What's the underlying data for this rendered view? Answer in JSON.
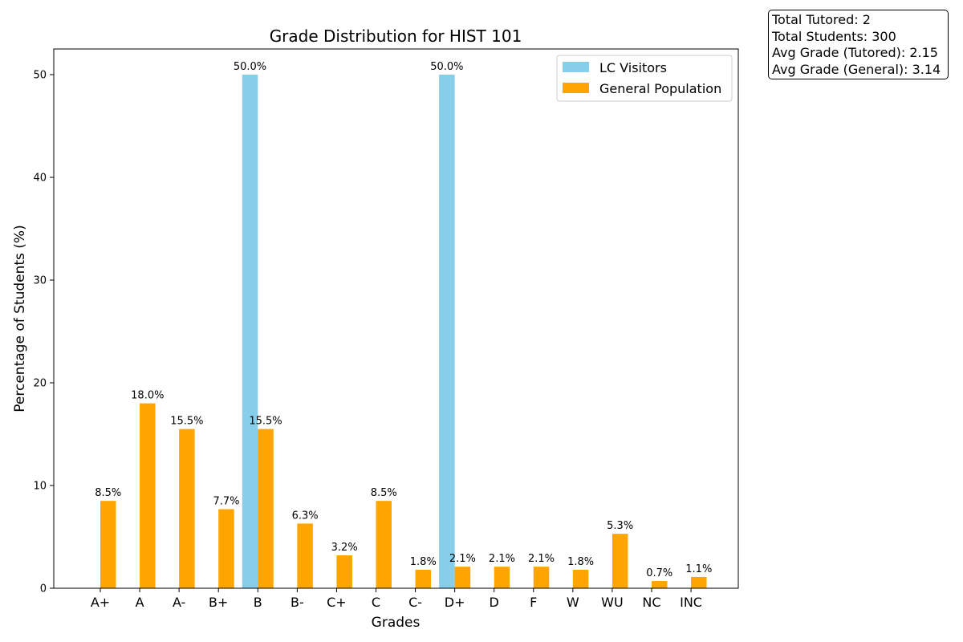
{
  "chart_data": {
    "type": "bar",
    "title": "Grade Distribution for HIST 101",
    "xlabel": "Grades",
    "ylabel": "Percentage of Students (%)",
    "ylim": [
      0,
      52.5
    ],
    "yticks": [
      0,
      10,
      20,
      30,
      40,
      50
    ],
    "grid": false,
    "legend_position": "top-right",
    "categories": [
      "A+",
      "A",
      "A-",
      "B+",
      "B",
      "B-",
      "C+",
      "C",
      "C-",
      "D+",
      "D",
      "F",
      "W",
      "WU",
      "NC",
      "INC"
    ],
    "series": [
      {
        "name": "LC Visitors",
        "color": "#87ceeb",
        "values": [
          0,
          0,
          0,
          0,
          50.0,
          0,
          0,
          0,
          0,
          50.0,
          0,
          0,
          0,
          0,
          0,
          0
        ],
        "labels": [
          "",
          "",
          "",
          "",
          "50.0%",
          "",
          "",
          "",
          "",
          "50.0%",
          "",
          "",
          "",
          "",
          "",
          ""
        ]
      },
      {
        "name": "General Population",
        "color": "#ffa500",
        "values": [
          8.5,
          18.0,
          15.5,
          7.7,
          15.5,
          6.3,
          3.2,
          8.5,
          1.8,
          2.1,
          2.1,
          2.1,
          1.8,
          5.3,
          0.7,
          1.1
        ],
        "labels": [
          "8.5%",
          "18.0%",
          "15.5%",
          "7.7%",
          "15.5%",
          "6.3%",
          "3.2%",
          "8.5%",
          "1.8%",
          "2.1%",
          "2.1%",
          "2.1%",
          "1.8%",
          "5.3%",
          "0.7%",
          "1.1%"
        ]
      }
    ]
  },
  "stats": {
    "line1": "Total Tutored: 2",
    "line2": "Total Students: 300",
    "line3": "Avg Grade (Tutored): 2.15",
    "line4": "Avg Grade (General): 3.14"
  }
}
